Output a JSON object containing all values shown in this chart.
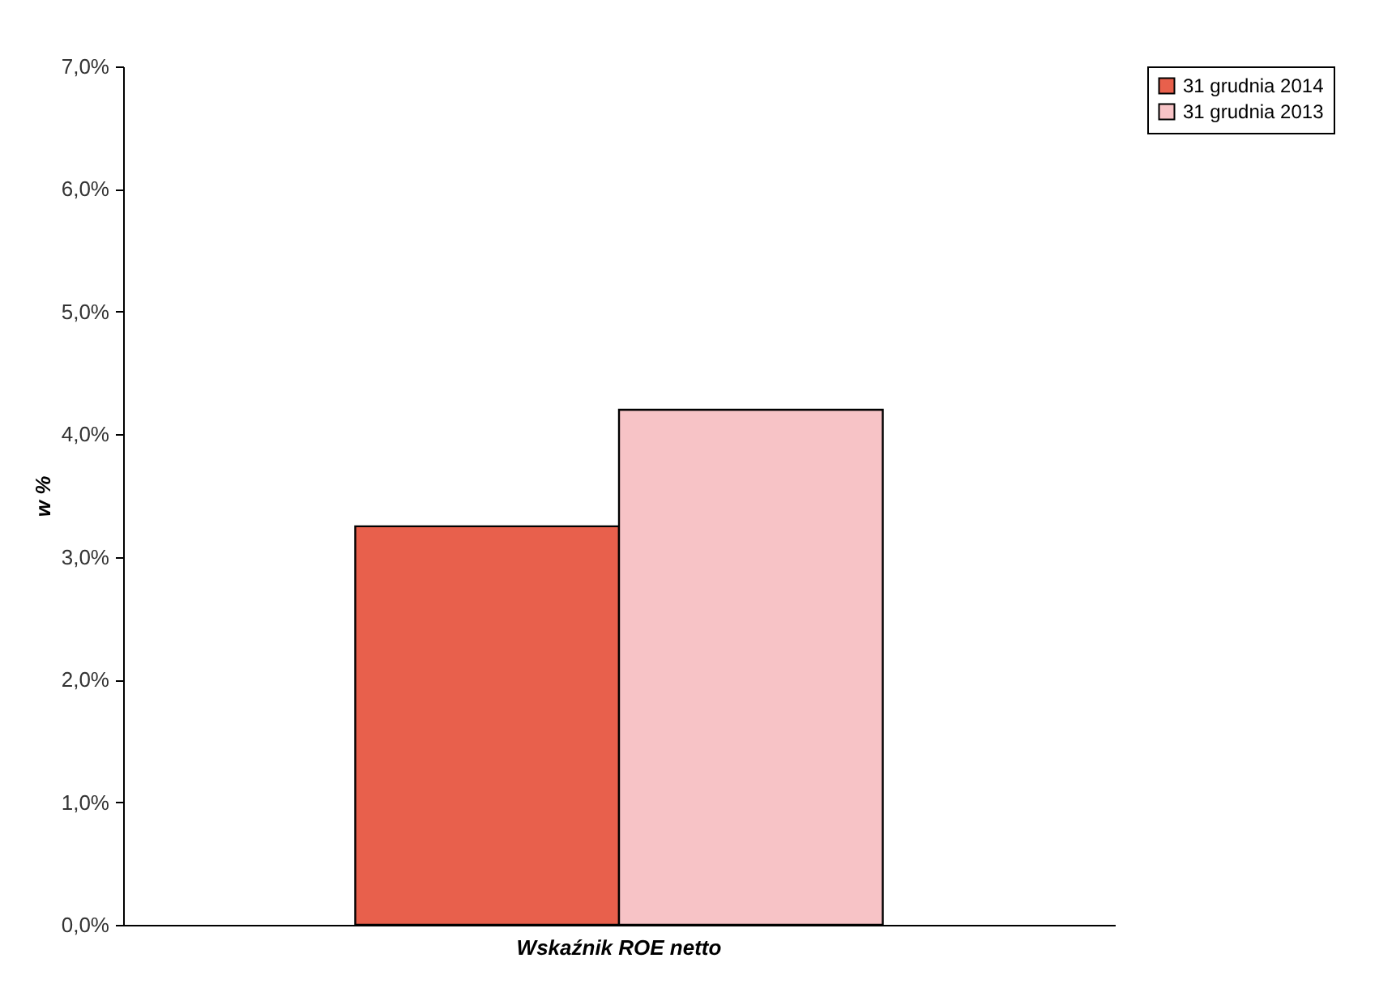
{
  "chart_data": {
    "type": "bar",
    "categories": [
      "Wskaźnik ROE netto"
    ],
    "ylabel": "w %",
    "series": [
      {
        "name": "31 grudnia 2014",
        "color": "#e8604c",
        "values": [
          3.25
        ]
      },
      {
        "name": "31 grudnia 2013",
        "color": "#f7c3c6",
        "values": [
          4.2
        ]
      }
    ],
    "ylim": [
      0,
      7
    ],
    "yticks": [
      {
        "value": 0,
        "label": "0,0%"
      },
      {
        "value": 1,
        "label": "1,0%"
      },
      {
        "value": 2,
        "label": "2,0%"
      },
      {
        "value": 3,
        "label": "3,0%"
      },
      {
        "value": 4,
        "label": "4,0%"
      },
      {
        "value": 5,
        "label": "5,0%"
      },
      {
        "value": 6,
        "label": "6,0%"
      },
      {
        "value": 7,
        "label": "7,0%"
      }
    ],
    "grid": false,
    "legend": "right"
  }
}
